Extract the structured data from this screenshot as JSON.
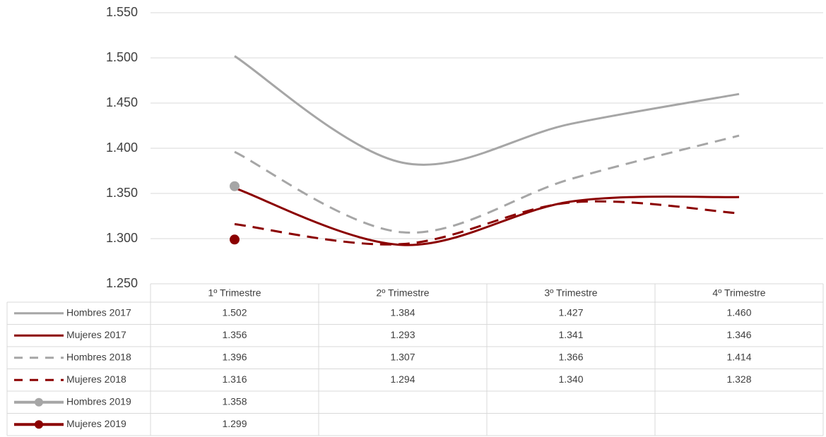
{
  "chart_data": {
    "type": "line",
    "categories": [
      "1º Trimestre",
      "2º Trimestre",
      "3º Trimestre",
      "4º Trimestre"
    ],
    "ylim": [
      1250,
      1550
    ],
    "yticks": [
      {
        "value": 1250,
        "label": "1.250"
      },
      {
        "value": 1300,
        "label": "1.300"
      },
      {
        "value": 1350,
        "label": "1.350"
      },
      {
        "value": 1400,
        "label": "1.400"
      },
      {
        "value": 1450,
        "label": "1.450"
      },
      {
        "value": 1500,
        "label": "1.500"
      },
      {
        "value": 1550,
        "label": "1.550"
      }
    ],
    "grid": true,
    "series": [
      {
        "name": "Hombres 2017",
        "color": "#a6a6a6",
        "dashed": false,
        "marker": false,
        "values": [
          1502,
          1384,
          1427,
          1460
        ],
        "value_labels": [
          "1.502",
          "1.384",
          "1.427",
          "1.460"
        ]
      },
      {
        "name": "Mujeres 2017",
        "color": "#8b0000",
        "dashed": false,
        "marker": false,
        "values": [
          1356,
          1293,
          1341,
          1346
        ],
        "value_labels": [
          "1.356",
          "1.293",
          "1.341",
          "1.346"
        ]
      },
      {
        "name": "Hombres 2018",
        "color": "#a6a6a6",
        "dashed": true,
        "marker": false,
        "values": [
          1396,
          1307,
          1366,
          1414
        ],
        "value_labels": [
          "1.396",
          "1.307",
          "1.366",
          "1.414"
        ]
      },
      {
        "name": "Mujeres 2018",
        "color": "#8b0000",
        "dashed": true,
        "marker": false,
        "values": [
          1316,
          1294,
          1340,
          1328
        ],
        "value_labels": [
          "1.316",
          "1.294",
          "1.340",
          "1.328"
        ]
      },
      {
        "name": "Hombres 2019",
        "color": "#a6a6a6",
        "dashed": false,
        "marker": true,
        "values": [
          1358,
          null,
          null,
          null
        ],
        "value_labels": [
          "1.358",
          null,
          null,
          null
        ]
      },
      {
        "name": "Mujeres 2019",
        "color": "#8b0000",
        "dashed": false,
        "marker": true,
        "values": [
          1299,
          null,
          null,
          null
        ],
        "value_labels": [
          "1.299",
          null,
          null,
          null
        ]
      }
    ]
  }
}
